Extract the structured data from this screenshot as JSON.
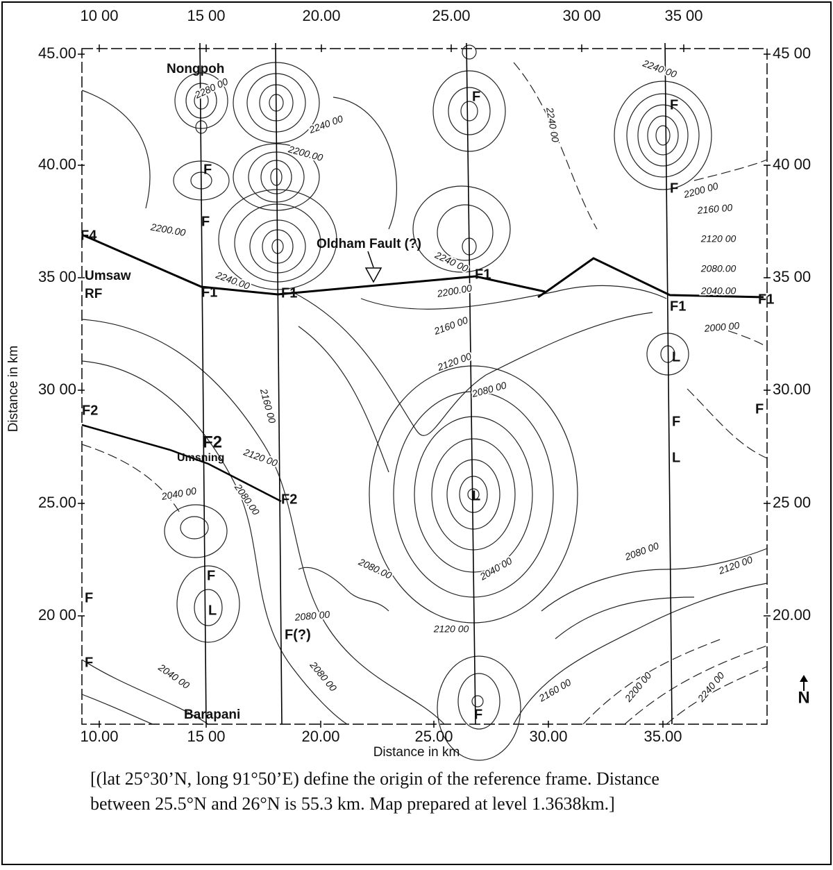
{
  "map": {
    "y_axis_label": "Distance in km",
    "x_axis_label": "Distance in km",
    "left_ticks": [
      "45.00",
      "40.00",
      "35 00",
      "30 00",
      "25.00",
      "20 00"
    ],
    "right_ticks": [
      "45 00",
      "40 00",
      "35 00",
      "30.00",
      "25 00",
      "20.00"
    ],
    "bottom_ticks": [
      "10.00",
      "15 00",
      "20.00",
      "25.00",
      "30.00",
      "35.00"
    ],
    "top_ticks": [
      "10 00",
      "15 00",
      "20.00",
      "25.00",
      "30 00",
      "35 00"
    ],
    "places": [
      "Nongpoh",
      "Umsaw",
      "RF",
      "Oldham Fault (?)",
      "Umsning",
      "Barapani"
    ],
    "fault_labels": [
      "F",
      "F",
      "F",
      "F",
      "F",
      "F",
      "F",
      "F",
      "F",
      "F",
      "F",
      "F1",
      "F1",
      "F1",
      "F1",
      "F1",
      "F4",
      "F2",
      "F2",
      "F2",
      "L",
      "L",
      "L",
      "L",
      "F(?)"
    ],
    "north": "N",
    "contour_labels": [
      "2280 00",
      "2240 00",
      "2200.00",
      "2240 00",
      "2240 00",
      "2200 00",
      "2160 00",
      "2120 00",
      "2080.00",
      "2040.00",
      "2000 00",
      "2200.00",
      "2240.00",
      "2240 00",
      "2200.00",
      "2160 00",
      "2120 00",
      "2080 00",
      "2160 00",
      "2120 00",
      "2040 00",
      "2080.00",
      "2080.00",
      "2040 00",
      "2080 00",
      "2120 00",
      "2080 00",
      "2120 00",
      "2080 00",
      "2040 00",
      "2160 00",
      "2200 00",
      "2240 00"
    ]
  },
  "caption_lines": [
    "[(lat 25°30’N, long 91°50’E) define the origin of the reference frame. Distance",
    "between 25.5°N and 26°N is 55.3 km. Map prepared at level 1.3638km.]"
  ]
}
